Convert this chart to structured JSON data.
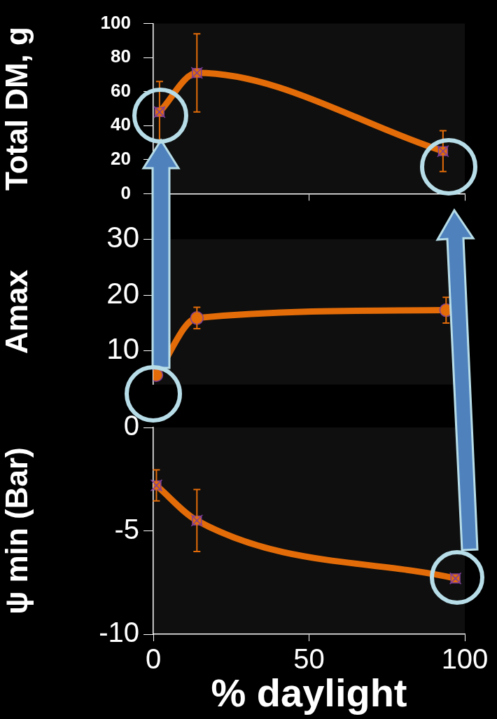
{
  "chart_data": [
    {
      "type": "line",
      "ylabel": "Total DM, g",
      "x": [
        2,
        14,
        93
      ],
      "values": [
        48,
        71,
        25
      ],
      "errors": [
        18,
        23,
        12
      ],
      "color": "#e36c09",
      "marker": "square",
      "line_style": "solid",
      "xlim": [
        0,
        100
      ],
      "xticks": [
        {
          "value": 0,
          "label": null
        },
        {
          "value": 50,
          "label": null
        },
        {
          "value": 100,
          "label": null
        }
      ],
      "ylim": [
        0,
        100
      ],
      "yticks": [
        0,
        20,
        40,
        60,
        80,
        100
      ],
      "tick_labels": "y"
    },
    {
      "type": "line",
      "ylabel": "Amax",
      "x": [
        1,
        14,
        94
      ],
      "values": [
        5.7,
        15.9,
        17.3
      ],
      "errors": [
        null,
        1.9,
        2.3
      ],
      "color": "#e36c09",
      "marker": "circle",
      "line_style": "solid",
      "xlim": [
        0,
        100
      ],
      "ylim": [
        4,
        30
      ],
      "yticks": [
        10,
        20,
        30
      ],
      "tick_labels": "y"
    },
    {
      "type": "line",
      "ylabel": "ψ min (Bar)",
      "xlabel": "% daylight",
      "x": [
        1,
        14,
        97
      ],
      "values": [
        -2.8,
        -4.5,
        -7.3
      ],
      "errors": [
        0.75,
        1.5,
        null
      ],
      "color": "#e36c09",
      "marker": "square",
      "line_style": "solid",
      "xlim": [
        0,
        100
      ],
      "xticks": [
        0,
        50,
        100
      ],
      "ylim": [
        -10,
        0
      ],
      "yticks": [
        -10,
        -5,
        0
      ]
    }
  ]
}
